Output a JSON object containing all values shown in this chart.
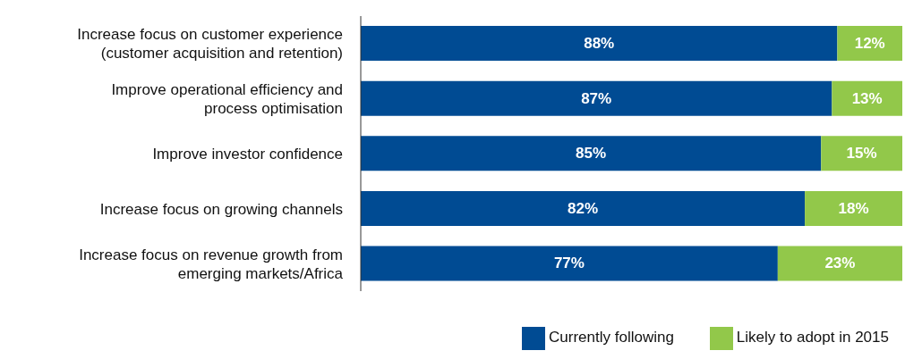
{
  "chart_data": {
    "type": "bar",
    "orientation": "horizontal",
    "stacked": true,
    "categories": [
      "Increase focus on customer experience (customer acquisition and retention)",
      "Improve operational efficiency and process optimisation",
      "Improve investor confidence",
      "Increase focus on growing channels",
      "Increase focus on revenue growth from emerging markets/Africa"
    ],
    "series": [
      {
        "name": "Currently following",
        "color": "#004b93",
        "values": [
          88,
          87,
          85,
          82,
          77
        ],
        "value_labels": [
          "88%",
          "87%",
          "85%",
          "82%",
          "77%"
        ]
      },
      {
        "name": "Likely to adopt in 2015",
        "color": "#92c84a",
        "values": [
          12,
          13,
          15,
          18,
          23
        ],
        "value_labels": [
          "12%",
          "13%",
          "15%",
          "18%",
          "23%"
        ]
      }
    ],
    "legend": "bottom",
    "grid": false
  }
}
